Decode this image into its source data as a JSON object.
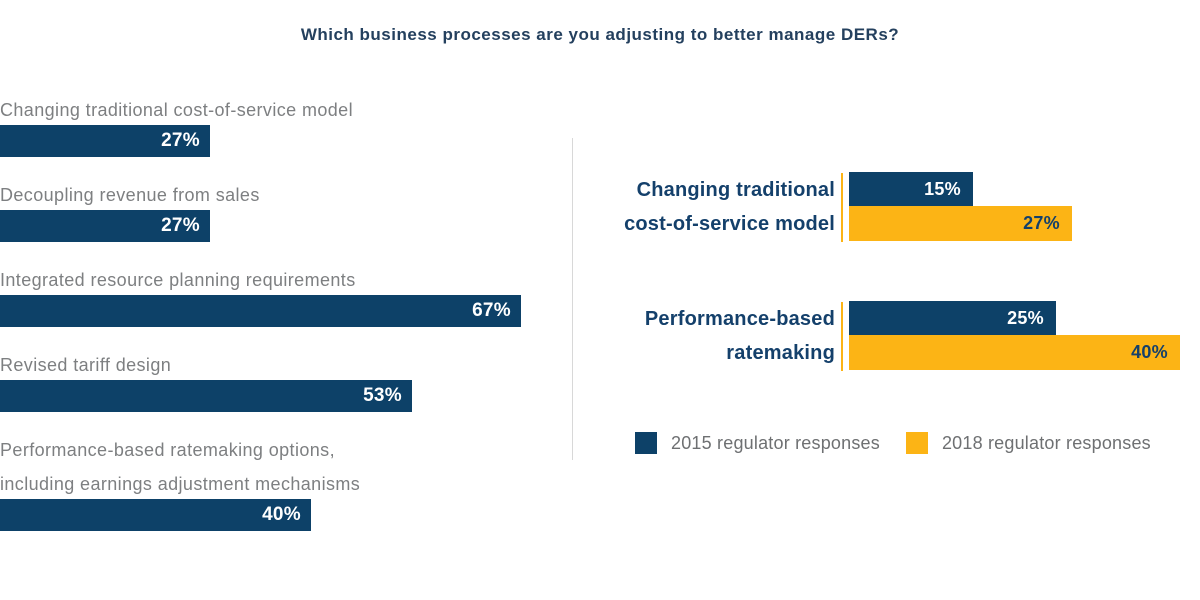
{
  "title": "Which business processes are you adjusting to better manage DERs?",
  "colors": {
    "navy": "#0D4168",
    "gold": "#FCB415",
    "title_navy": "#24405E",
    "category_gray": "#7D7F81",
    "legend_gray": "#6E7072",
    "divider_gray": "#D8D8D8"
  },
  "chart_data": [
    {
      "type": "bar",
      "orientation": "horizontal",
      "unit": "%",
      "categories": [
        {
          "lines": [
            "Changing traditional cost-of-service model"
          ]
        },
        {
          "lines": [
            "Decoupling revenue from sales"
          ]
        },
        {
          "lines": [
            "Integrated resource planning requirements"
          ]
        },
        {
          "lines": [
            "Revised tariff design"
          ]
        },
        {
          "lines": [
            "Performance-based ratemaking options,",
            "including earnings adjustment mechanisms"
          ]
        }
      ],
      "values": [
        27,
        27,
        67,
        53,
        40
      ],
      "value_labels": [
        "27%",
        "27%",
        "67%",
        "53%",
        "40%"
      ],
      "bar_color": "#0D4168",
      "value_label_position": "inside-right",
      "grid": false,
      "axis_labels_shown": false
    },
    {
      "type": "grouped_bar",
      "orientation": "horizontal",
      "unit": "%",
      "categories": [
        {
          "lines": [
            "Changing traditional",
            "cost-of-service model"
          ]
        },
        {
          "lines": [
            "Performance-based",
            "ratemaking"
          ]
        }
      ],
      "series": [
        {
          "name": "2015 regulator responses",
          "color": "#0D4168",
          "values": [
            15,
            25
          ],
          "value_labels": [
            "15%",
            "25%"
          ]
        },
        {
          "name": "2018 regulator responses",
          "color": "#FCB415",
          "values": [
            27,
            40
          ],
          "value_labels": [
            "27%",
            "40%"
          ]
        }
      ],
      "legend_position": "bottom",
      "grid": false,
      "axis_labels_shown": false
    }
  ],
  "legend": [
    {
      "label": "2015 regulator responses",
      "color": "#0D4168"
    },
    {
      "label": "2018 regulator responses",
      "color": "#FCB415"
    }
  ]
}
